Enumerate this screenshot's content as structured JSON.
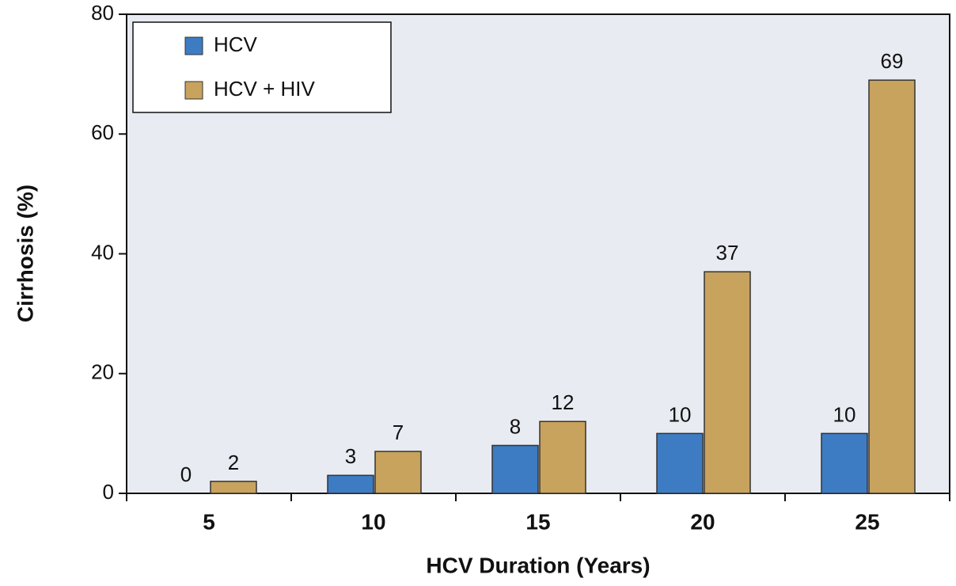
{
  "chart_data": {
    "type": "bar",
    "xlabel": "HCV Duration (Years)",
    "ylabel": "Cirrhosis (%)",
    "categories": [
      "5",
      "10",
      "15",
      "20",
      "25"
    ],
    "series": [
      {
        "name": "HCV",
        "color": "#3d7cc2",
        "values": [
          0,
          3,
          8,
          10,
          10
        ]
      },
      {
        "name": "HCV + HIV",
        "color": "#c8a35e",
        "values": [
          2,
          7,
          12,
          37,
          69
        ]
      }
    ],
    "ylim": [
      0,
      80
    ],
    "yticks": [
      0,
      20,
      40,
      60,
      80
    ],
    "legend": "upper left"
  }
}
